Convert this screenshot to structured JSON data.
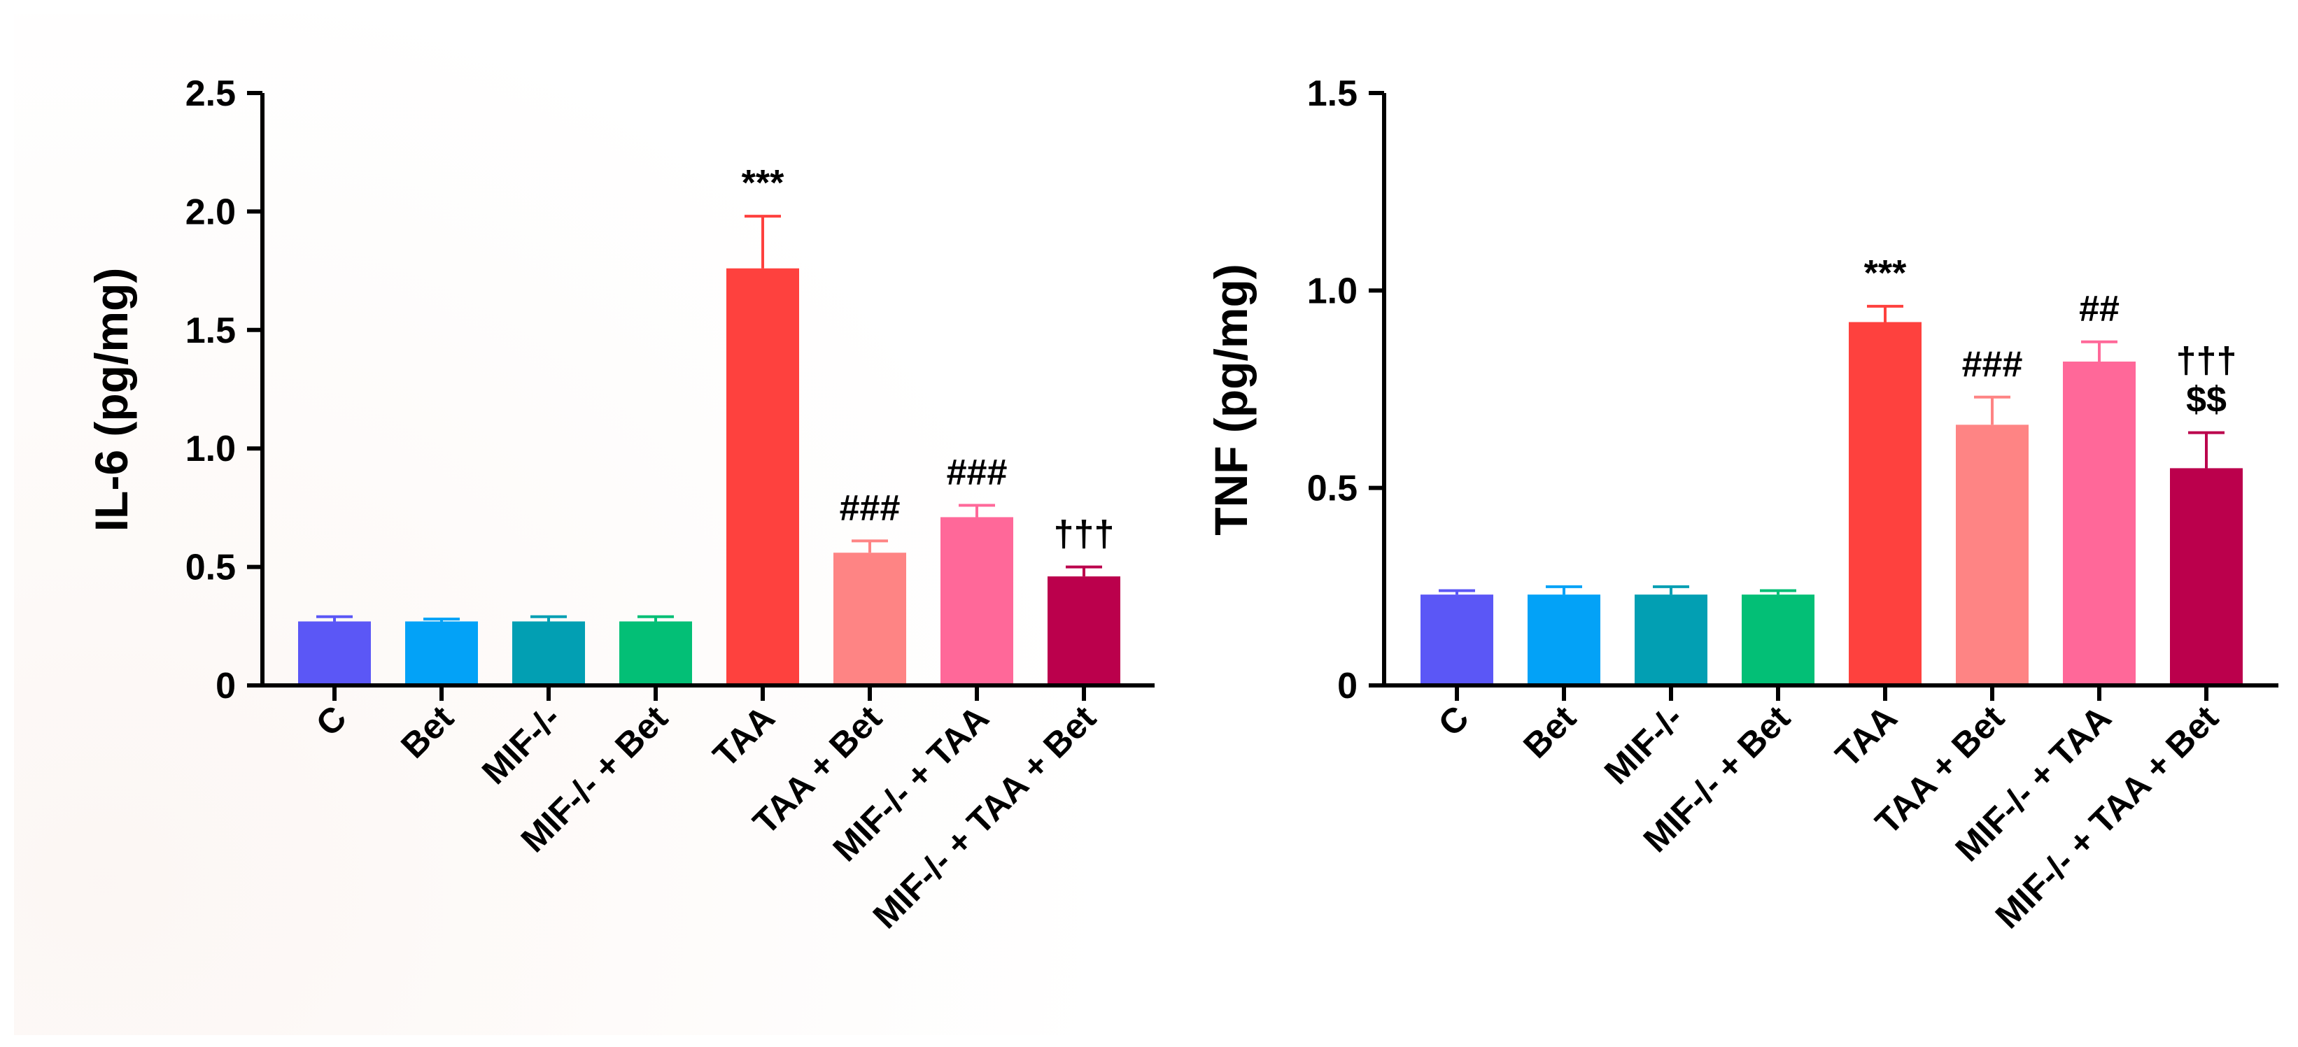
{
  "chart_data": [
    {
      "type": "bar",
      "ylabel": "IL-6 (pg/mg)",
      "categories": [
        "C",
        "Bet",
        "MIF-/-",
        "MIF-/- + Bet",
        "TAA",
        "TAA + Bet",
        "MIF-/- + TAA",
        "MIF-/- + TAA + Bet"
      ],
      "values": [
        0.27,
        0.27,
        0.27,
        0.27,
        1.76,
        0.56,
        0.71,
        0.46
      ],
      "errors": [
        0.02,
        0.01,
        0.02,
        0.02,
        0.22,
        0.05,
        0.05,
        0.04
      ],
      "annotations": [
        "",
        "",
        "",
        "",
        "***",
        "###",
        "###",
        "†††"
      ],
      "colors": [
        "#5b57f6",
        "#03a2f7",
        "#029fb3",
        "#03bf76",
        "#fe413e",
        "#fe8484",
        "#ff6899",
        "#bb004c"
      ],
      "ylim": [
        0,
        2.5
      ],
      "yticks": [
        0,
        0.5,
        1.0,
        1.5,
        2.0,
        2.5
      ],
      "ytick_labels": [
        "0",
        "0.5",
        "1.0",
        "1.5",
        "2.0",
        "2.5"
      ]
    },
    {
      "type": "bar",
      "ylabel": "TNF (pg/mg)",
      "categories": [
        "C",
        "Bet",
        "MIF-/-",
        "MIF-/- + Bet",
        "TAA",
        "TAA + Bet",
        "MIF-/- + TAA",
        "MIF-/- + TAA + Bet"
      ],
      "values": [
        0.23,
        0.23,
        0.23,
        0.23,
        0.92,
        0.66,
        0.82,
        0.55
      ],
      "errors": [
        0.01,
        0.02,
        0.02,
        0.01,
        0.04,
        0.07,
        0.05,
        0.09
      ],
      "annotations": [
        "",
        "",
        "",
        "",
        "***",
        "###",
        "##",
        "†††\n$$"
      ],
      "colors": [
        "#5b57f6",
        "#03a2f7",
        "#029fb3",
        "#03bf76",
        "#fe413e",
        "#fe8484",
        "#ff6899",
        "#bb004c"
      ],
      "ylim": [
        0,
        1.5
      ],
      "yticks": [
        0,
        0.5,
        1.0,
        1.5
      ],
      "ytick_labels": [
        "0",
        "0.5",
        "1.0",
        "1.5"
      ]
    }
  ]
}
